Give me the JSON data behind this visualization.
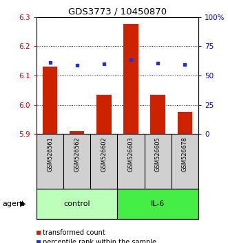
{
  "title": "GDS3773 / 10450870",
  "samples": [
    "GSM526561",
    "GSM526562",
    "GSM526602",
    "GSM526603",
    "GSM526605",
    "GSM526678"
  ],
  "transformed_counts": [
    6.13,
    5.91,
    6.035,
    6.275,
    6.035,
    5.975
  ],
  "percentile_ranks": [
    6.145,
    6.135,
    6.14,
    6.155,
    6.142,
    6.138
  ],
  "ylim": [
    5.9,
    6.3
  ],
  "yticks": [
    5.9,
    6.0,
    6.1,
    6.2,
    6.3
  ],
  "right_yticks": [
    0,
    25,
    50,
    75,
    100
  ],
  "right_ytick_labels": [
    "0",
    "25",
    "50",
    "75",
    "100%"
  ],
  "groups": [
    {
      "label": "control",
      "indices": [
        0,
        1,
        2
      ],
      "color": "#bbffbb"
    },
    {
      "label": "IL-6",
      "indices": [
        3,
        4,
        5
      ],
      "color": "#44ee44"
    }
  ],
  "bar_color": "#cc2200",
  "dot_color": "#2233cc",
  "bar_width": 0.55,
  "grid_color": "#000000",
  "background_color": "#ffffff",
  "plot_bg_color": "#ffffff",
  "sample_bg_color": "#d0d0d0",
  "legend_items": [
    {
      "color": "#cc2200",
      "label": "transformed count"
    },
    {
      "color": "#2233cc",
      "label": "percentile rank within the sample"
    }
  ],
  "agent_label": "agent",
  "left_label_color": "#cc0000",
  "right_label_color": "#0000cc",
  "grid_yticks": [
    6.0,
    6.1,
    6.2
  ]
}
